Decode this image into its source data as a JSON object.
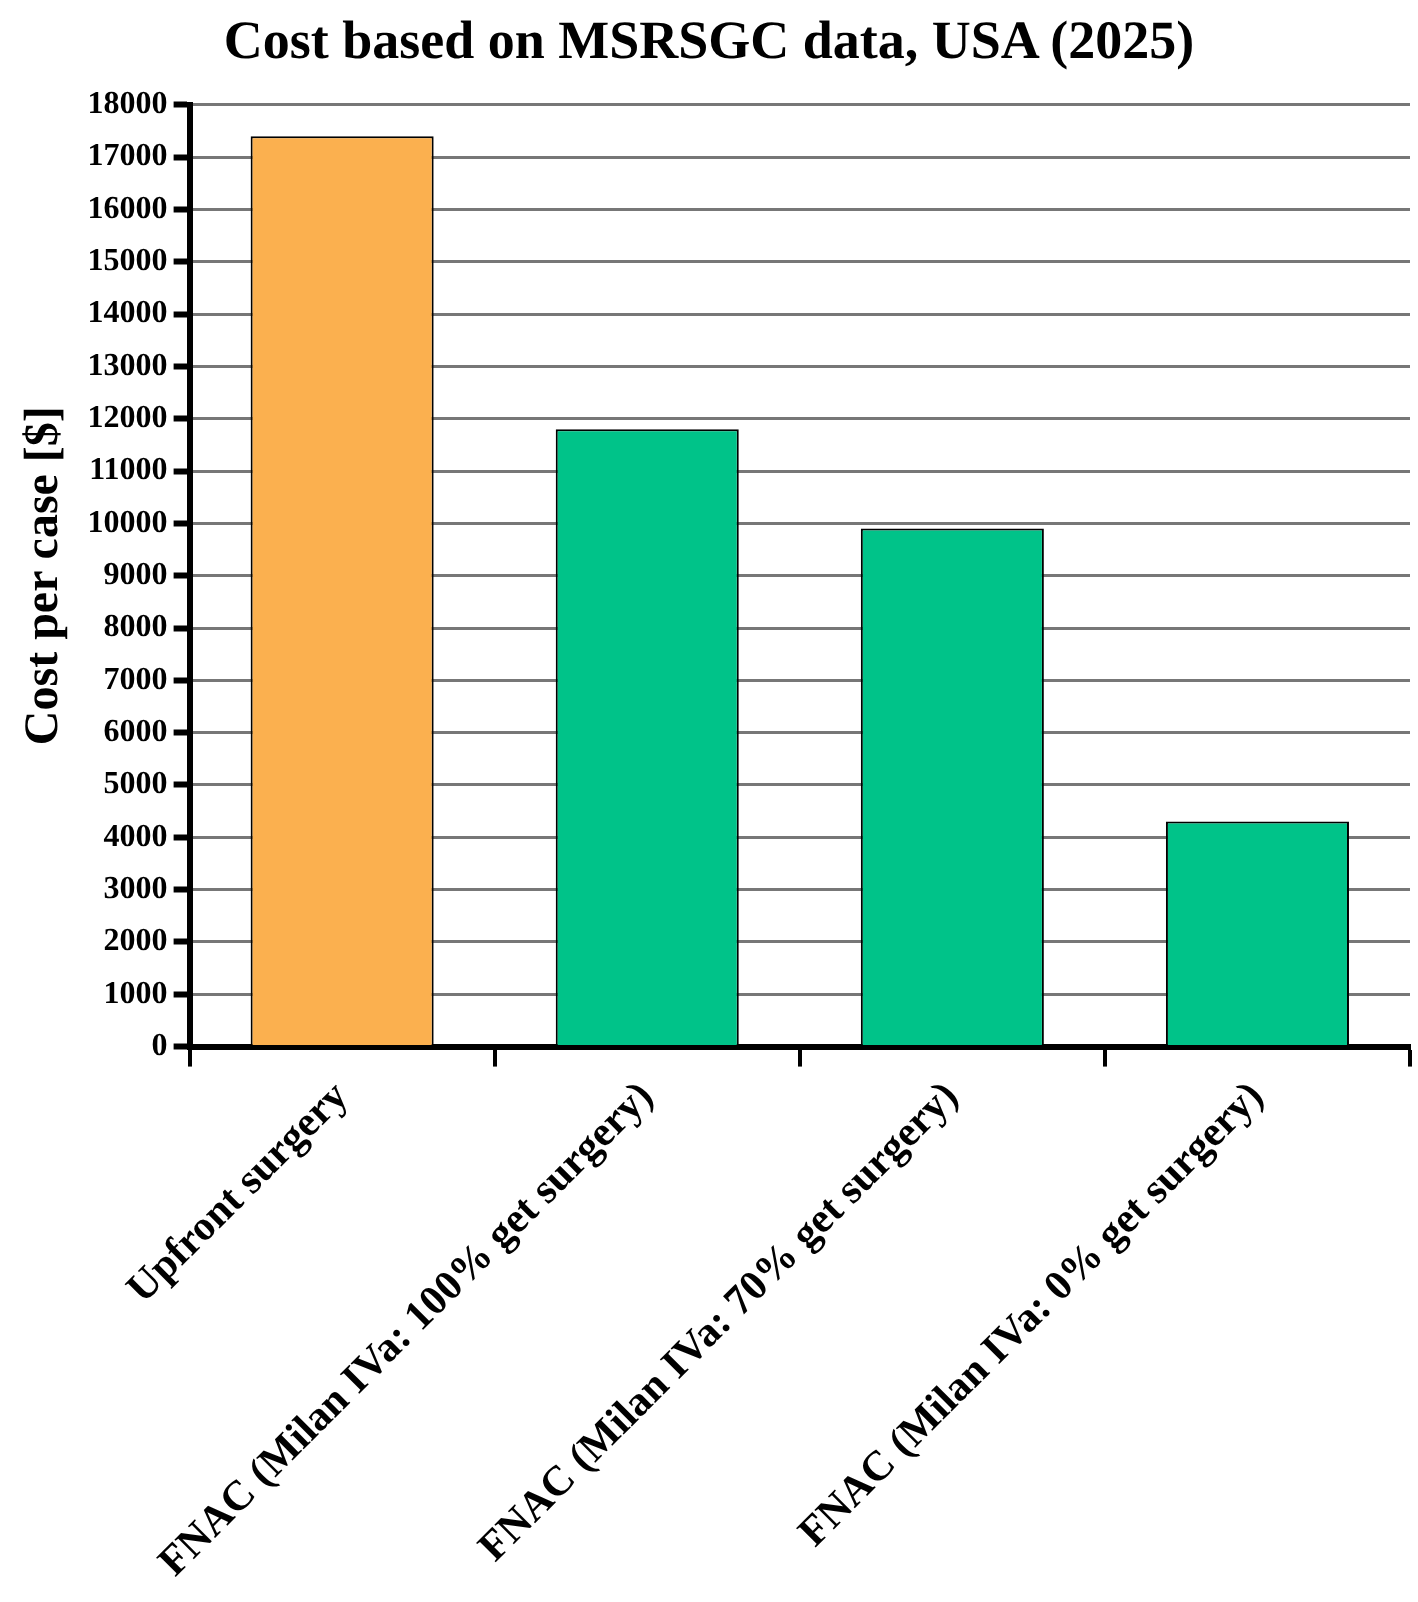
{
  "chart_data": {
    "type": "bar",
    "title": "Cost based on MSRSGC data, USA (2025)",
    "ylabel": "Cost per case [$]",
    "categories": [
      "Upfront surgery",
      "FNAC (Milan IVa: 100% get surgery)",
      "FNAC (Milan IVa: 70% get surgery)",
      "FNAC (Milan IVa: 0% get surgery)"
    ],
    "values": [
      17400,
      11800,
      9900,
      4300
    ],
    "colors": [
      "#fbb04f",
      "#00c389",
      "#00c389",
      "#00c389"
    ],
    "ylim": [
      0,
      18000
    ],
    "yticks": [
      0,
      1000,
      2000,
      3000,
      4000,
      5000,
      6000,
      7000,
      8000,
      9000,
      10000,
      11000,
      12000,
      13000,
      14000,
      15000,
      16000,
      17000,
      18000
    ],
    "grid": "y",
    "legend": false
  }
}
